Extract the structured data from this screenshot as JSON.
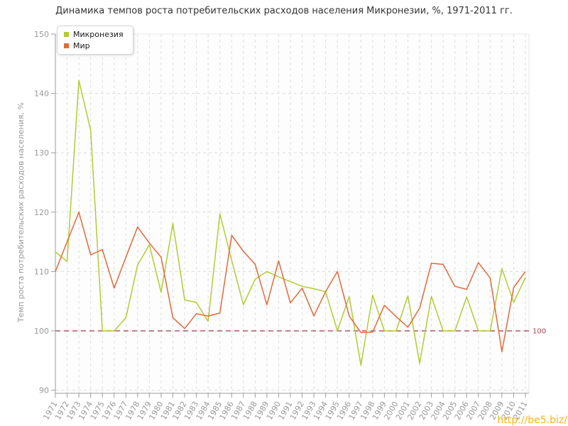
{
  "title": "Динамика темпов роста потребительских расходов населения Микронезии, %, 1971-2011 гг.",
  "y_axis_title": "Темп роста потребительских расходов населения, %",
  "watermark": "http://be5.biz/",
  "colors": {
    "micronesia": "#b1cc34",
    "world": "#e4683a",
    "guide_line": "#b05a6a",
    "guide_label": "#a04a5a",
    "grid": "#dcdcdc",
    "axis": "#9c9c9c",
    "frame": "#e9e9e9",
    "plot_bg": "#fdfdfd",
    "tick_text": "#999999"
  },
  "legend": {
    "items": [
      {
        "label": "Микронезия",
        "color": "#b1cc34"
      },
      {
        "label": "Мир",
        "color": "#e4683a"
      }
    ]
  },
  "chart_data": {
    "type": "line",
    "x": [
      1971,
      1972,
      1973,
      1974,
      1975,
      1976,
      1977,
      1978,
      1979,
      1980,
      1981,
      1982,
      1983,
      1984,
      1985,
      1986,
      1987,
      1988,
      1989,
      1990,
      1991,
      1992,
      1993,
      1994,
      1995,
      1996,
      1997,
      1998,
      1999,
      2000,
      2001,
      2002,
      2003,
      2004,
      2005,
      2006,
      2007,
      2008,
      2009,
      2010,
      2011
    ],
    "series": [
      {
        "name": "Микронезия",
        "color": "#b1cc34",
        "values": [
          113.3,
          111.7,
          142.2,
          133.8,
          100,
          100,
          102.2,
          111.1,
          114.5,
          106.5,
          118.1,
          105.2,
          104.8,
          101.6,
          119.7,
          111.9,
          104.4,
          108.7,
          110,
          109.1,
          108.3,
          107.5,
          107.1,
          106.6,
          100,
          105.8,
          94.2,
          106,
          100,
          100,
          105.9,
          94.5,
          105.8,
          100,
          100,
          105.7,
          100,
          100,
          110.5,
          104.8,
          109
        ]
      },
      {
        "name": "Мир",
        "color": "#e4683a",
        "values": [
          110,
          115,
          120,
          112.8,
          113.7,
          107.2,
          112.4,
          117.5,
          114.8,
          112.4,
          102.2,
          100.4,
          102.9,
          102.5,
          103,
          116.1,
          113.4,
          111.2,
          104.4,
          111.8,
          104.7,
          107.2,
          102.5,
          106.6,
          110,
          102.5,
          99.7,
          99.8,
          104.3,
          102.4,
          100.6,
          103.8,
          111.4,
          111.2,
          107.5,
          107,
          111.5,
          108.9,
          96.5,
          107.3,
          110
        ]
      }
    ],
    "title": "Динамика темпов роста потребительских расходов населения Микронезии, %, 1971-2011 гг.",
    "xlabel": "",
    "ylabel": "Темп роста потребительских расходов населения, %",
    "ylim": [
      90,
      150
    ],
    "yticks": [
      90,
      100,
      110,
      120,
      130,
      140,
      150
    ],
    "grid": true,
    "legend_position": "top-left",
    "guide": {
      "value": 100,
      "label": "100"
    }
  }
}
